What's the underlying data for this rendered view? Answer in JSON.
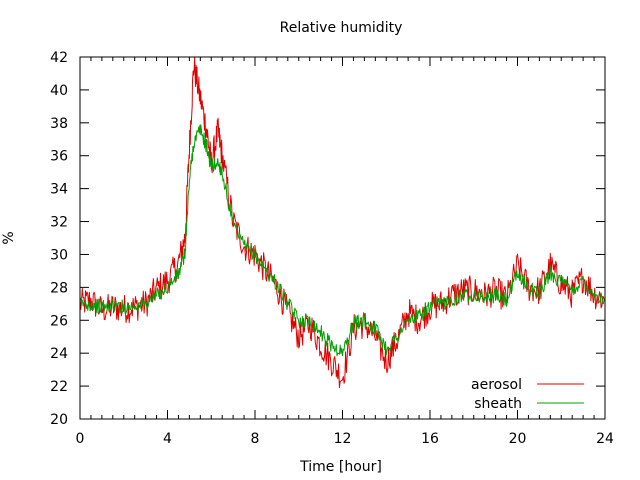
{
  "chart_data": {
    "type": "line",
    "title": "Relative humidity",
    "xlabel": "Time [hour]",
    "ylabel": "%",
    "xlim": [
      0,
      24
    ],
    "ylim": [
      20,
      42
    ],
    "x_ticks": [
      0,
      4,
      8,
      12,
      16,
      20,
      24
    ],
    "y_ticks": [
      20,
      22,
      24,
      26,
      28,
      30,
      32,
      34,
      36,
      38,
      40,
      42
    ],
    "grid": false,
    "legend": "bottom-right",
    "series": [
      {
        "name": "aerosol",
        "color": "#e00000",
        "x": [
          0,
          0.5,
          1,
          1.5,
          2,
          2.5,
          3,
          3.5,
          4,
          4.5,
          4.8,
          5,
          5.2,
          5.5,
          5.8,
          6,
          6.3,
          6.5,
          7,
          7.5,
          8,
          8.5,
          9,
          9.5,
          10,
          10.5,
          11,
          11.5,
          12,
          12.5,
          13,
          13.5,
          14,
          14.5,
          15,
          15.5,
          16,
          16.5,
          17,
          17.5,
          18,
          18.5,
          19,
          19.5,
          20,
          20.5,
          21,
          21.5,
          22,
          22.5,
          23,
          23.5,
          24
        ],
        "values": [
          27.0,
          27.2,
          26.6,
          26.8,
          26.7,
          26.8,
          27.0,
          27.9,
          28.4,
          29.5,
          31.0,
          36.5,
          41.5,
          39.5,
          37.5,
          35.5,
          37.5,
          36.0,
          32.0,
          30.5,
          30.0,
          29.0,
          28.0,
          26.5,
          25.0,
          25.8,
          24.5,
          23.5,
          22.5,
          25.5,
          25.8,
          25.0,
          23.5,
          24.8,
          26.5,
          26.0,
          26.8,
          27.0,
          27.5,
          27.8,
          27.8,
          27.5,
          27.8,
          27.3,
          29.3,
          28.0,
          27.8,
          29.3,
          28.2,
          27.6,
          28.6,
          27.6,
          27.2
        ]
      },
      {
        "name": "sheath",
        "color": "#00a000",
        "x": [
          0,
          0.5,
          1,
          1.5,
          2,
          2.5,
          3,
          3.5,
          4,
          4.5,
          4.8,
          5,
          5.2,
          5.5,
          5.8,
          6,
          6.3,
          6.5,
          7,
          7.5,
          8,
          8.5,
          9,
          9.5,
          10,
          10.5,
          11,
          11.5,
          12,
          12.5,
          13,
          13.5,
          14,
          14.5,
          15,
          15.5,
          16,
          16.5,
          17,
          17.5,
          18,
          18.5,
          19,
          19.5,
          20,
          20.5,
          21,
          21.5,
          22,
          22.5,
          23,
          23.5,
          24
        ],
        "values": [
          27.0,
          27.0,
          26.8,
          26.9,
          26.8,
          26.9,
          27.0,
          27.5,
          28.0,
          28.8,
          30.0,
          34.5,
          36.8,
          37.6,
          36.5,
          35.3,
          35.6,
          35.0,
          31.8,
          30.5,
          30.0,
          29.0,
          28.2,
          27.0,
          26.0,
          26.0,
          25.3,
          24.5,
          24.0,
          25.8,
          26.0,
          25.5,
          24.3,
          25.0,
          26.0,
          26.2,
          26.8,
          27.0,
          27.3,
          27.5,
          27.6,
          27.4,
          27.5,
          27.2,
          28.8,
          28.0,
          27.6,
          28.9,
          28.3,
          27.8,
          28.4,
          27.6,
          27.2
        ]
      }
    ]
  }
}
